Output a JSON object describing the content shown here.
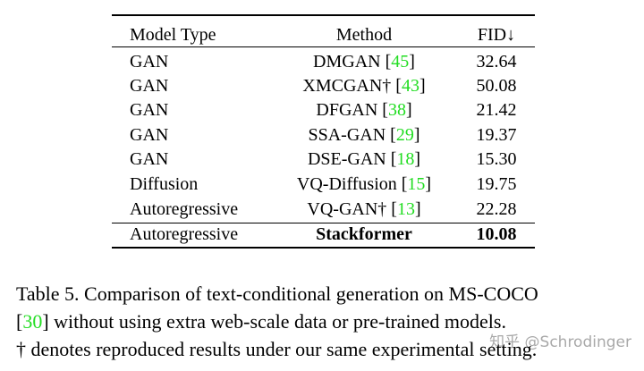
{
  "table": {
    "header": [
      "Model Type",
      "Method",
      "FID↓"
    ],
    "rows": [
      {
        "model": "GAN",
        "method": [
          "DMGAN [",
          "45",
          "]"
        ],
        "fid": "32.64"
      },
      {
        "model": "GAN",
        "method": [
          "XMCGAN† [",
          "43",
          "]"
        ],
        "fid": "50.08"
      },
      {
        "model": "GAN",
        "method": [
          "DFGAN [",
          "38",
          "]"
        ],
        "fid": "21.42"
      },
      {
        "model": "GAN",
        "method": [
          "SSA-GAN [",
          "29",
          "]"
        ],
        "fid": "19.37"
      },
      {
        "model": "GAN",
        "method": [
          "DSE-GAN [",
          "18",
          "]"
        ],
        "fid": "15.30"
      },
      {
        "model": "Diffusion",
        "method": [
          "VQ-Diffusion [",
          "15",
          "]"
        ],
        "fid": "19.75"
      },
      {
        "model": "Autoregressive",
        "method": [
          "VQ-GAN† [",
          "13",
          "]"
        ],
        "fid": "22.28"
      },
      {
        "model": "Autoregressive",
        "method": [
          "Stackformer"
        ],
        "fid": "10.08",
        "bold": true
      }
    ]
  },
  "caption": [
    [
      "Table 5. Comparison of text-conditional generation on MS-COCO"
    ],
    [
      "[",
      "30",
      "] without using extra web-scale data or pre-trained models."
    ],
    [
      "† denotes reproduced results under our same experimental setting."
    ]
  ],
  "watermark": "知乎 @Schrodinger"
}
